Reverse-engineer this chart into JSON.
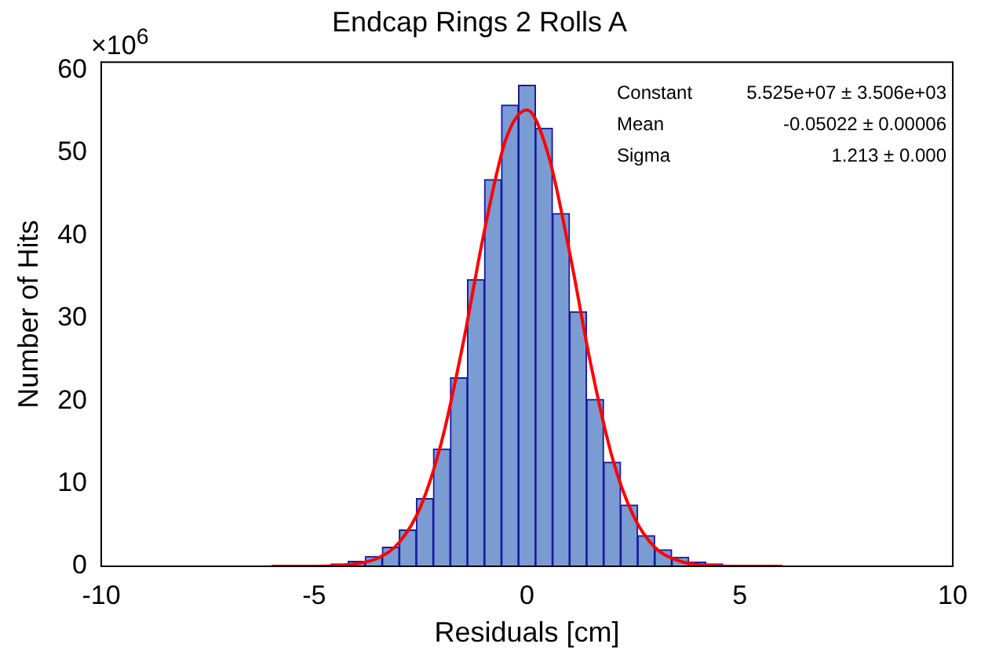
{
  "chart_data": {
    "type": "histogram",
    "title": "Endcap Rings 2 Rolls A",
    "xlabel": "Residuals [cm]",
    "ylabel": "Number of Hits",
    "bins": [
      -4.6,
      -4.2,
      -3.8,
      -3.4,
      -3.0,
      -2.6,
      -2.2,
      -1.8,
      -1.4,
      -1.0,
      -0.6,
      -0.2,
      0.2,
      0.6,
      1.0,
      1.4,
      1.8,
      2.2,
      2.6,
      3.0,
      3.4,
      3.8,
      4.2,
      4.6
    ],
    "values": [
      0.3,
      0.6,
      1.2,
      2.3,
      4.4,
      8.2,
      14.2,
      22.8,
      34.7,
      46.8,
      55.8,
      58.2,
      53.0,
      42.7,
      30.8,
      20.2,
      12.6,
      7.4,
      3.7,
      2.0,
      1.1,
      0.5,
      0.3
    ],
    "color": "#7b9bd3",
    "series": [
      {
        "type": "line",
        "color": "#ff0000",
        "x": [
          -6,
          -5,
          -4,
          -3.5,
          -3,
          -2.5,
          -2,
          -1.5,
          -1,
          -0.5,
          0,
          0.5,
          1,
          1.5,
          2,
          2.5,
          3,
          3.5,
          4,
          5,
          6
        ],
        "values": [
          0,
          0,
          0.3,
          1.0,
          2.9,
          7.2,
          15.2,
          27.0,
          40.6,
          51.6,
          55.2,
          49.8,
          38.0,
          24.4,
          13.2,
          6.1,
          2.3,
          0.8,
          0.2,
          0,
          0
        ]
      }
    ],
    "xlim": [
      -10,
      10
    ],
    "xticks": [
      -10,
      -5,
      0,
      5,
      10
    ],
    "ylim": [
      0,
      61
    ],
    "yticks": [
      0,
      10,
      20,
      30,
      40,
      50,
      60
    ],
    "grid": false,
    "legend": false,
    "annotations": [
      "×10$^{6}$",
      "Constant 5.525e+07 ± 3.506e+03",
      "Mean -0.05022 ± 0.00006",
      "Sigma 1.213 ± 0.000"
    ]
  }
}
